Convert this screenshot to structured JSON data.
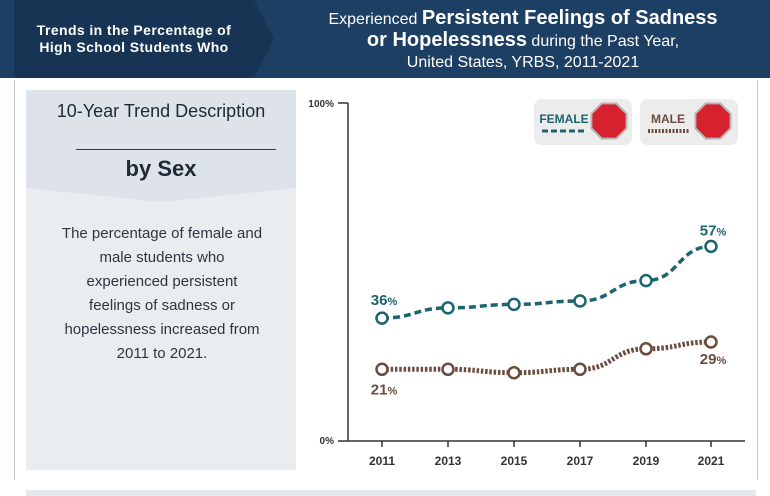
{
  "header": {
    "left_title": "Trends in the Percentage of High School Students Who",
    "right_pre": "Experienced",
    "right_big1": "Persistent Feelings of Sadness",
    "right_big2": "or Hopelessness",
    "right_post": "during the Past Year,",
    "right_line3": "United States, YRBS, 2011-2021"
  },
  "panel": {
    "title": "10-Year Trend Description",
    "subtitle": "by Sex",
    "description": "The percentage of female and male students who experienced persistent feelings of sadness or hopelessness increased from 2011 to 2021."
  },
  "legend": {
    "female_label": "FEMALE",
    "male_label": "MALE"
  },
  "colors": {
    "female": "#1b6470",
    "male": "#6b4c3e",
    "stop_sign": "#d6222e"
  },
  "chart_data": {
    "type": "line",
    "x": [
      "2011",
      "2013",
      "2015",
      "2017",
      "2019",
      "2021"
    ],
    "ylim": [
      0,
      100
    ],
    "y_ticks": [
      "0%",
      "100%"
    ],
    "series": [
      {
        "name": "FEMALE",
        "values": [
          36,
          39,
          40,
          41,
          47,
          57
        ],
        "labels": {
          "0": "36%",
          "5": "57%"
        }
      },
      {
        "name": "MALE",
        "values": [
          21,
          21,
          20,
          21,
          27,
          29
        ],
        "labels": {
          "0": "21%",
          "5": "29%"
        }
      }
    ]
  }
}
